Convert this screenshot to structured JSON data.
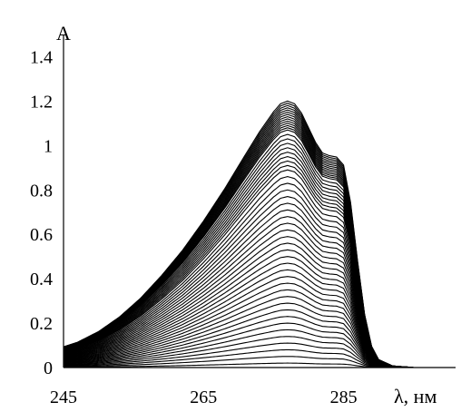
{
  "chart_data": {
    "type": "line",
    "title": "",
    "xlabel": "λ, нм",
    "ylabel": "A",
    "xlim": [
      245,
      301
    ],
    "ylim": [
      0,
      1.5
    ],
    "x_ticks": [
      245,
      265,
      285
    ],
    "y_ticks": [
      0,
      0.2,
      0.4,
      0.6,
      0.8,
      1,
      1.2,
      1.4
    ],
    "y_tick_labels": [
      "0",
      "0.2",
      "0.4",
      "0.6",
      "0.8",
      "1",
      "1.2",
      "1.4"
    ],
    "grid": false,
    "legend": "none",
    "line_color": "#000000",
    "shape": {
      "description_points_x": [
        245,
        247,
        250,
        253,
        256,
        259,
        262,
        265,
        268,
        271,
        273,
        275,
        276,
        277,
        278,
        279,
        280,
        281,
        282,
        283,
        284,
        285,
        286,
        287,
        288,
        289,
        290,
        292,
        295,
        298,
        301
      ],
      "relative_profile": [
        0.078,
        0.095,
        0.135,
        0.19,
        0.26,
        0.345,
        0.44,
        0.55,
        0.67,
        0.8,
        0.885,
        0.96,
        0.99,
        1.0,
        0.99,
        0.955,
        0.9,
        0.845,
        0.805,
        0.795,
        0.79,
        0.76,
        0.62,
        0.4,
        0.2,
        0.08,
        0.03,
        0.006,
        0.0,
        0.0,
        0.0
      ]
    },
    "series_peak_values": [
      0.02,
      0.05,
      0.08,
      0.11,
      0.14,
      0.17,
      0.2,
      0.23,
      0.26,
      0.29,
      0.32,
      0.35,
      0.38,
      0.41,
      0.44,
      0.47,
      0.5,
      0.53,
      0.56,
      0.59,
      0.62,
      0.65,
      0.68,
      0.71,
      0.74,
      0.77,
      0.8,
      0.83,
      0.86,
      0.89,
      0.91,
      0.93,
      0.95,
      0.97,
      0.99,
      1.01,
      1.03,
      1.05,
      1.07,
      1.08,
      1.09,
      1.1,
      1.11,
      1.12,
      1.13,
      1.14,
      1.15,
      1.16,
      1.17,
      1.18,
      1.19,
      1.2
    ]
  }
}
